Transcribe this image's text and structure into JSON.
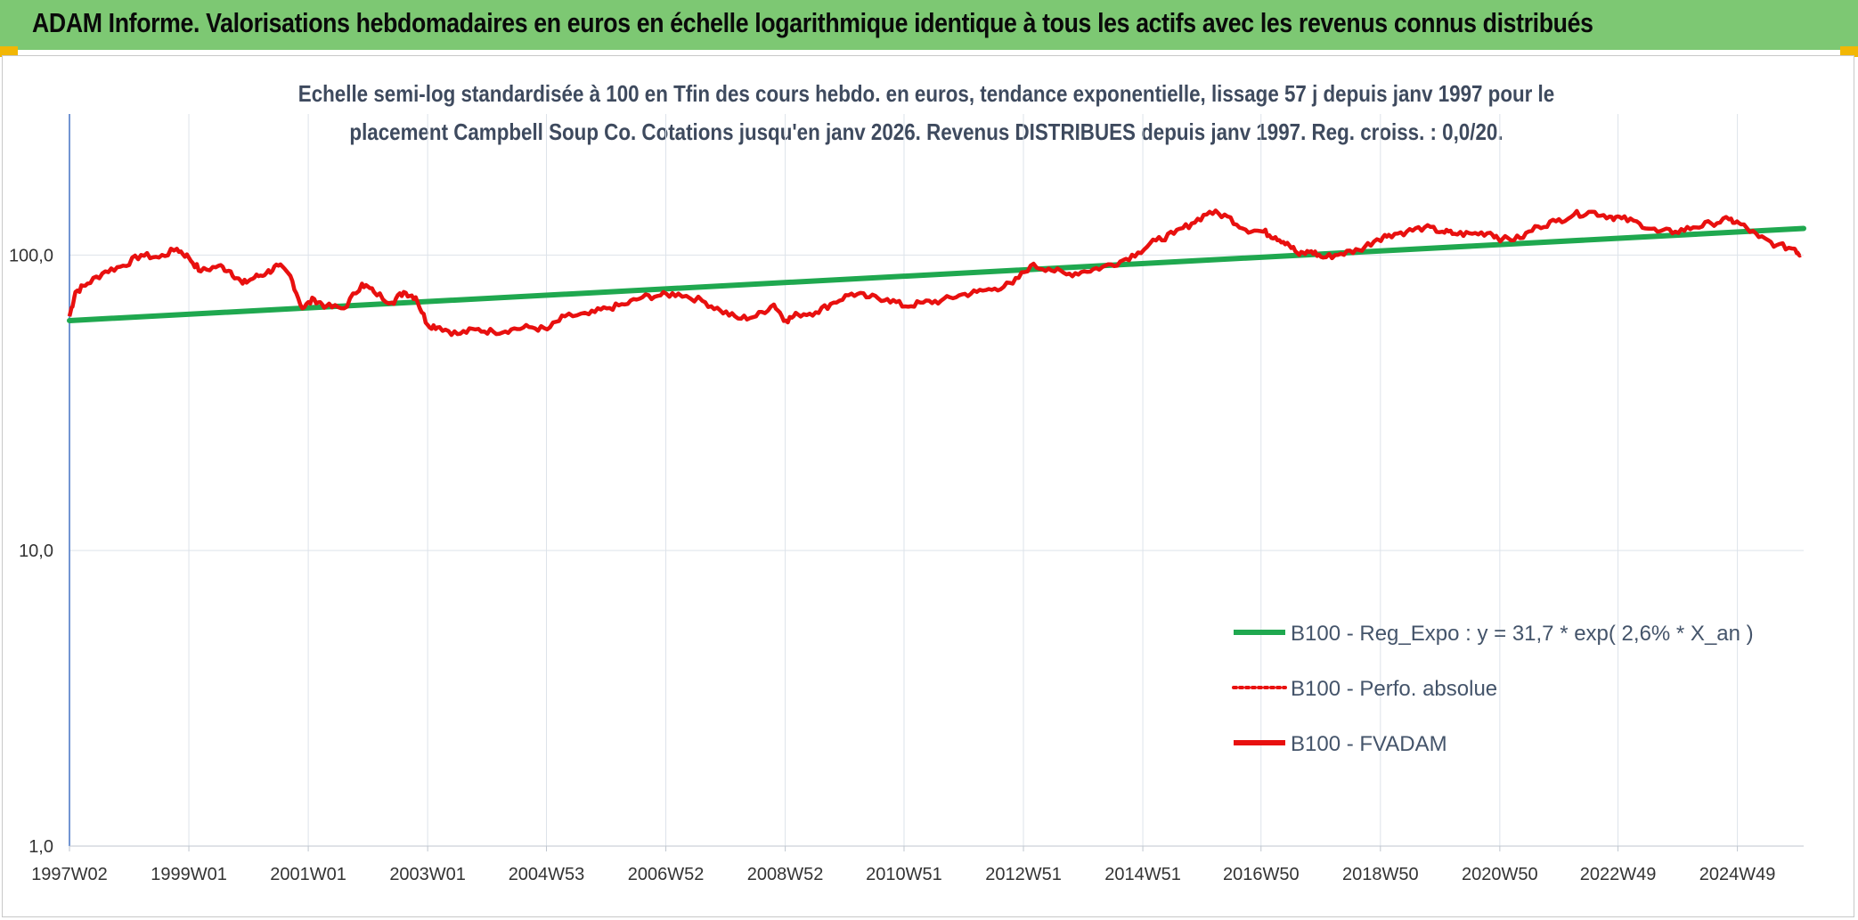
{
  "header": {
    "title": "ADAM Informe. Valorisations hebdomadaires en euros en échelle logarithmique identique à tous les actifs avec les revenus connus distribués"
  },
  "chart_data": {
    "type": "line",
    "yscale": "log",
    "title_line1": "Echelle semi-log standardisée à 100 en Tfin des cours hebdo. en euros, tendance exponentielle, lissage 57 j depuis janv 1997 pour le",
    "title_line2": "placement Campbell Soup Co. Cotations jusqu'en janv 2026. Revenus DISTRIBUES depuis janv 1997. Reg. croiss. : 0,0/20.",
    "ylim": [
      1,
      300
    ],
    "xlim": [
      1997.0,
      2026.05
    ],
    "y_ticks": [
      {
        "value": 100,
        "label": "100,0"
      },
      {
        "value": 10,
        "label": "10,0"
      },
      {
        "value": 1,
        "label": "1,0"
      }
    ],
    "x_ticks": [
      {
        "value": 1997.0,
        "label": "1997W02"
      },
      {
        "value": 1999.0,
        "label": "1999W01"
      },
      {
        "value": 2001.0,
        "label": "2001W01"
      },
      {
        "value": 2003.0,
        "label": "2003W01"
      },
      {
        "value": 2004.99,
        "label": "2004W53"
      },
      {
        "value": 2006.99,
        "label": "2006W52"
      },
      {
        "value": 2008.99,
        "label": "2008W52"
      },
      {
        "value": 2010.98,
        "label": "2010W51"
      },
      {
        "value": 2012.98,
        "label": "2012W51"
      },
      {
        "value": 2014.98,
        "label": "2014W51"
      },
      {
        "value": 2016.96,
        "label": "2016W50"
      },
      {
        "value": 2018.96,
        "label": "2018W50"
      },
      {
        "value": 2020.96,
        "label": "2020W50"
      },
      {
        "value": 2022.94,
        "label": "2022W49"
      },
      {
        "value": 2024.94,
        "label": "2024W49"
      }
    ],
    "legend": [
      {
        "name": "B100 - Reg_Expo : y = 31,7 * exp( 2,6% *  X_an )",
        "color": "#1fa84f",
        "style": "solid"
      },
      {
        "name": "B100 - Perfo. absolue",
        "color": "#e8100f",
        "style": "dotted"
      },
      {
        "name": "B100 - FVADAM",
        "color": "#e8100f",
        "style": "solid"
      }
    ],
    "series": [
      {
        "name": "B100 - Reg_Expo : y = 31,7 * exp( 2,6% *  X_an )",
        "color": "#1fa84f",
        "x": [
          1997.0,
          2026.05
        ],
        "values": [
          60,
          123
        ]
      },
      {
        "name": "B100 - FVADAM",
        "color": "#e8100f",
        "x": [
          1997.0,
          1997.1,
          1997.3,
          1997.6,
          1997.9,
          1998.2,
          1998.5,
          1998.8,
          1999.0,
          1999.2,
          1999.5,
          1999.7,
          1999.9,
          2000.1,
          2000.3,
          2000.5,
          2000.7,
          2000.9,
          2001.1,
          2001.3,
          2001.6,
          2001.9,
          2002.1,
          2002.4,
          2002.6,
          2002.8,
          2003.0,
          2003.2,
          2003.5,
          2003.8,
          2004.1,
          2004.4,
          2004.7,
          2005.0,
          2005.3,
          2005.7,
          2006.0,
          2006.3,
          2006.6,
          2006.9,
          2007.2,
          2007.6,
          2007.9,
          2008.2,
          2008.5,
          2008.8,
          2009.0,
          2009.2,
          2009.5,
          2009.8,
          2010.1,
          2010.4,
          2010.7,
          2011.0,
          2011.3,
          2011.6,
          2011.9,
          2012.2,
          2012.5,
          2012.8,
          2013.1,
          2013.4,
          2013.7,
          2014.0,
          2014.3,
          2014.6,
          2014.9,
          2015.2,
          2015.5,
          2015.8,
          2016.1,
          2016.4,
          2016.7,
          2017.0,
          2017.2,
          2017.4,
          2017.6,
          2017.8,
          2018.0,
          2018.3,
          2018.6,
          2018.9,
          2019.1,
          2019.4,
          2019.7,
          2020.0,
          2020.2,
          2020.5,
          2020.8,
          2021.0,
          2021.3,
          2021.6,
          2021.9,
          2022.2,
          2022.5,
          2022.8,
          2023.0,
          2023.3,
          2023.6,
          2023.9,
          2024.2,
          2024.5,
          2024.8,
          2025.0,
          2025.3,
          2025.6,
          2025.9,
          2026.0
        ],
        "values": [
          62,
          75,
          80,
          88,
          92,
          100,
          98,
          105,
          98,
          88,
          92,
          88,
          80,
          84,
          87,
          92,
          85,
          66,
          71,
          67,
          66,
          80,
          75,
          69,
          75,
          72,
          58,
          57,
          54,
          56,
          55,
          56,
          57,
          56,
          62,
          63,
          66,
          68,
          72,
          73,
          74,
          70,
          65,
          61,
          62,
          68,
          60,
          63,
          64,
          69,
          74,
          72,
          71,
          67,
          69,
          70,
          73,
          75,
          77,
          80,
          92,
          90,
          86,
          88,
          91,
          95,
          102,
          112,
          118,
          128,
          140,
          135,
          122,
          120,
          115,
          110,
          100,
          103,
          98,
          101,
          104,
          113,
          117,
          120,
          124,
          120,
          118,
          118,
          119,
          113,
          114,
          125,
          130,
          137,
          140,
          135,
          133,
          128,
          120,
          120,
          124,
          128,
          132,
          127,
          115,
          108,
          105,
          100
        ]
      }
    ]
  }
}
